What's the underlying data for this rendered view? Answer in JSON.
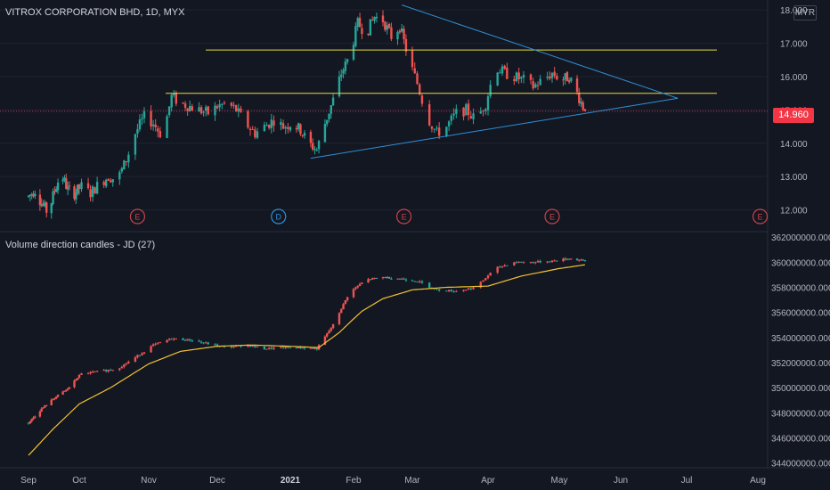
{
  "title": "VITROX CORPORATION BHD, 1D, MYX",
  "currency_button": "MYR",
  "last_price": "14.960",
  "colors": {
    "background": "#131722",
    "up": "#26a69a",
    "down": "#ef5350",
    "level_line": "#e6dc3c",
    "trend_line": "#2f8fd6",
    "ma_line": "#f2c230",
    "grid": "#1f2330",
    "text": "#b2b5be"
  },
  "chart_data": [
    {
      "type": "candlestick",
      "title": "VITROX CORPORATION BHD, 1D, MYX",
      "x_ticks": [
        "Sep",
        "Oct",
        "Nov",
        "Dec",
        "2021",
        "Feb",
        "Mar",
        "Apr",
        "May",
        "Jun",
        "Jul",
        "Aug"
      ],
      "y_ticks": [
        "12.000",
        "13.000",
        "14.000",
        "15.000",
        "16.000",
        "17.000",
        "18.000"
      ],
      "ylim": [
        11.4,
        18.3
      ],
      "last_price": 14.96,
      "price_path": [
        [
          "2020-08-31",
          12.4
        ],
        [
          "2020-09-04",
          12.6
        ],
        [
          "2020-09-08",
          12.2
        ],
        [
          "2020-09-12",
          11.9
        ],
        [
          "2020-09-16",
          12.6
        ],
        [
          "2020-09-20",
          13.1
        ],
        [
          "2020-09-24",
          12.6
        ],
        [
          "2020-09-28",
          12.5
        ],
        [
          "2020-10-02",
          12.7
        ],
        [
          "2020-10-06",
          12.5
        ],
        [
          "2020-10-10",
          12.8
        ],
        [
          "2020-10-14",
          13.0
        ],
        [
          "2020-10-18",
          12.9
        ],
        [
          "2020-10-22",
          13.5
        ],
        [
          "2020-10-26",
          14.3
        ],
        [
          "2020-10-30",
          14.8
        ],
        [
          "2020-11-03",
          14.6
        ],
        [
          "2020-11-07",
          14.2
        ],
        [
          "2020-11-11",
          15.4
        ],
        [
          "2020-11-15",
          15.2
        ],
        [
          "2020-11-19",
          15.1
        ],
        [
          "2020-11-23",
          15.0
        ],
        [
          "2020-11-27",
          14.9
        ],
        [
          "2020-12-01",
          15.1
        ],
        [
          "2020-12-05",
          15.2
        ],
        [
          "2020-12-09",
          15.0
        ],
        [
          "2020-12-13",
          14.6
        ],
        [
          "2020-12-17",
          14.3
        ],
        [
          "2020-12-21",
          14.5
        ],
        [
          "2020-12-25",
          14.7
        ],
        [
          "2020-12-29",
          14.5
        ],
        [
          "2021-01-02",
          14.6
        ],
        [
          "2021-01-06",
          14.4
        ],
        [
          "2021-01-10",
          14.0
        ],
        [
          "2021-01-14",
          13.8
        ],
        [
          "2021-01-18",
          14.6
        ],
        [
          "2021-01-22",
          15.3
        ],
        [
          "2021-01-26",
          16.1
        ],
        [
          "2021-01-30",
          16.6
        ],
        [
          "2021-02-03",
          17.6
        ],
        [
          "2021-02-07",
          17.3
        ],
        [
          "2021-02-11",
          17.8
        ],
        [
          "2021-02-15",
          17.7
        ],
        [
          "2021-02-19",
          17.2
        ],
        [
          "2021-02-23",
          17.5
        ],
        [
          "2021-02-27",
          16.6
        ],
        [
          "2021-03-03",
          15.8
        ],
        [
          "2021-03-07",
          14.8
        ],
        [
          "2021-03-11",
          14.3
        ],
        [
          "2021-03-15",
          14.5
        ],
        [
          "2021-03-19",
          14.9
        ],
        [
          "2021-03-23",
          15.0
        ],
        [
          "2021-03-27",
          14.7
        ],
        [
          "2021-03-31",
          15.2
        ],
        [
          "2021-04-04",
          16.3
        ],
        [
          "2021-04-08",
          16.1
        ],
        [
          "2021-04-12",
          16.0
        ],
        [
          "2021-04-16",
          15.9
        ],
        [
          "2021-04-20",
          15.7
        ],
        [
          "2021-04-24",
          15.9
        ],
        [
          "2021-04-28",
          16.1
        ],
        [
          "2021-05-02",
          15.9
        ],
        [
          "2021-05-06",
          16.0
        ],
        [
          "2021-05-10",
          15.5
        ],
        [
          "2021-05-14",
          14.96
        ]
      ],
      "horizontal_levels": [
        16.8,
        15.5
      ],
      "trend_lines": [
        [
          [
            "2021-01-11",
            13.55
          ],
          [
            "2021-06-27",
            15.35
          ]
        ],
        [
          [
            "2021-02-24",
            18.15
          ],
          [
            "2021-06-27",
            15.35
          ]
        ]
      ],
      "event_markers": [
        {
          "date": "2020-10-27",
          "label": "E"
        },
        {
          "date": "2020-12-27",
          "label": "D"
        },
        {
          "date": "2021-02-25",
          "label": "E"
        },
        {
          "date": "2021-04-28",
          "label": "E"
        },
        {
          "date": "2021-08-02",
          "label": "E"
        }
      ]
    },
    {
      "type": "candlestick",
      "title": "Volume direction candles - JD (27)",
      "x_ticks": [
        "Sep",
        "Oct",
        "Nov",
        "Dec",
        "2021",
        "Feb",
        "Mar",
        "Apr",
        "May",
        "Jun",
        "Jul",
        "Aug"
      ],
      "y_ticks": [
        "344000000.000",
        "346000000.000",
        "348000000.000",
        "350000000.000",
        "352000000.000",
        "354000000.000",
        "356000000.000",
        "358000000.000",
        "360000000.000",
        "362000000.000"
      ],
      "ylim": [
        343900000,
        362300000
      ],
      "indicator_path": [
        [
          "2020-08-31",
          347200000
        ],
        [
          "2020-09-08",
          348300000
        ],
        [
          "2020-09-16",
          349200000
        ],
        [
          "2020-09-24",
          349900000
        ],
        [
          "2020-10-02",
          351100000
        ],
        [
          "2020-10-10",
          351300000
        ],
        [
          "2020-10-18",
          351500000
        ],
        [
          "2020-10-26",
          352400000
        ],
        [
          "2020-11-03",
          353400000
        ],
        [
          "2020-11-11",
          353900000
        ],
        [
          "2020-11-19",
          353800000
        ],
        [
          "2020-11-27",
          353500000
        ],
        [
          "2020-12-05",
          353200000
        ],
        [
          "2020-12-13",
          353400000
        ],
        [
          "2020-12-21",
          353100000
        ],
        [
          "2020-12-29",
          353200000
        ],
        [
          "2021-01-06",
          353200000
        ],
        [
          "2021-01-14",
          353100000
        ],
        [
          "2021-01-22",
          355000000
        ],
        [
          "2021-01-30",
          357600000
        ],
        [
          "2021-02-07",
          358600000
        ],
        [
          "2021-02-15",
          358800000
        ],
        [
          "2021-02-23",
          358700000
        ],
        [
          "2021-03-03",
          358500000
        ],
        [
          "2021-03-11",
          357800000
        ],
        [
          "2021-03-19",
          357700000
        ],
        [
          "2021-03-27",
          358000000
        ],
        [
          "2021-04-04",
          359500000
        ],
        [
          "2021-04-12",
          360000000
        ],
        [
          "2021-04-20",
          360000000
        ],
        [
          "2021-04-28",
          360100000
        ],
        [
          "2021-05-06",
          360300000
        ],
        [
          "2021-05-14",
          360100000
        ]
      ],
      "moving_average": [
        [
          "2020-08-31",
          344600000
        ],
        [
          "2020-09-15",
          346700000
        ],
        [
          "2020-10-01",
          348700000
        ],
        [
          "2020-10-15",
          350000000
        ],
        [
          "2020-11-01",
          351900000
        ],
        [
          "2020-11-15",
          352900000
        ],
        [
          "2020-12-01",
          353300000
        ],
        [
          "2020-12-15",
          353400000
        ],
        [
          "2021-01-01",
          353300000
        ],
        [
          "2021-01-15",
          353200000
        ],
        [
          "2021-01-25",
          354400000
        ],
        [
          "2021-02-05",
          356100000
        ],
        [
          "2021-02-15",
          357100000
        ],
        [
          "2021-03-01",
          357800000
        ],
        [
          "2021-03-15",
          358000000
        ],
        [
          "2021-04-01",
          358100000
        ],
        [
          "2021-04-15",
          358900000
        ],
        [
          "2021-05-01",
          359500000
        ],
        [
          "2021-05-14",
          359800000
        ]
      ]
    }
  ]
}
